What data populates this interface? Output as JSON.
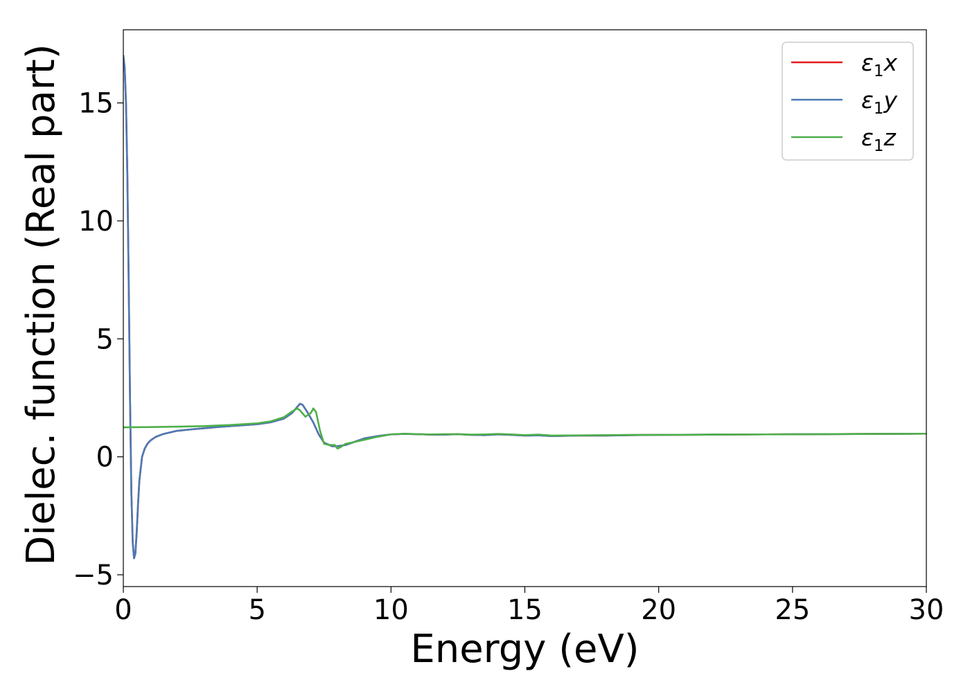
{
  "chart_data": {
    "type": "line",
    "title": "",
    "xlabel": "Energy (eV)",
    "ylabel": "Dielec. function (Real part)",
    "xlim": [
      0,
      30
    ],
    "ylim": [
      -5.5,
      18.1
    ],
    "xticks": [
      0,
      5,
      10,
      15,
      20,
      25,
      30
    ],
    "yticks": [
      -5,
      0,
      5,
      10,
      15
    ],
    "xtick_labels": [
      "0",
      "5",
      "10",
      "15",
      "20",
      "25",
      "30"
    ],
    "ytick_labels": [
      "−5",
      "0",
      "5",
      "10",
      "15"
    ],
    "grid": false,
    "legend_position": "top-right",
    "series": [
      {
        "name": "ε1x",
        "symbol": "ε",
        "subscript": "1",
        "axis": "x",
        "color": "#e41a1c",
        "x": [
          0,
          0.05,
          0.1,
          0.15,
          0.2,
          0.25,
          0.3,
          0.35,
          0.4,
          0.45,
          0.5,
          0.55,
          0.6,
          0.7,
          0.8,
          0.9,
          1.0,
          1.2,
          1.5,
          2.0,
          2.5,
          3.0,
          3.5,
          4.0,
          4.5,
          5.0,
          5.5,
          6.0,
          6.3,
          6.5,
          6.6,
          6.7,
          6.9,
          7.1,
          7.3,
          7.5,
          7.8,
          8.0,
          8.3,
          8.6,
          9.0,
          9.5,
          10.0,
          10.5,
          11.0,
          11.5,
          12.0,
          12.5,
          13.0,
          13.5,
          14.0,
          14.5,
          15.0,
          15.5,
          16.0,
          17.0,
          18.0,
          19.0,
          20.0,
          22.0,
          24.0,
          26.0,
          28.0,
          30.0
        ],
        "values": [
          17.0,
          16.5,
          15.0,
          12.0,
          7.5,
          2.5,
          -1.5,
          -3.6,
          -4.3,
          -4.1,
          -3.2,
          -2.0,
          -1.0,
          0.0,
          0.35,
          0.55,
          0.68,
          0.84,
          0.97,
          1.1,
          1.16,
          1.21,
          1.26,
          1.3,
          1.34,
          1.38,
          1.46,
          1.62,
          1.85,
          2.12,
          2.25,
          2.2,
          1.85,
          1.45,
          0.95,
          0.6,
          0.45,
          0.45,
          0.5,
          0.62,
          0.78,
          0.88,
          0.95,
          0.97,
          0.96,
          0.94,
          0.94,
          0.96,
          0.93,
          0.92,
          0.95,
          0.93,
          0.9,
          0.91,
          0.88,
          0.9,
          0.9,
          0.92,
          0.93,
          0.94,
          0.95,
          0.96,
          0.97,
          0.98
        ]
      },
      {
        "name": "ε1y",
        "symbol": "ε",
        "subscript": "1",
        "axis": "y",
        "color": "#4a7ab5",
        "x": [
          0,
          0.05,
          0.1,
          0.15,
          0.2,
          0.25,
          0.3,
          0.35,
          0.4,
          0.45,
          0.5,
          0.55,
          0.6,
          0.7,
          0.8,
          0.9,
          1.0,
          1.2,
          1.5,
          2.0,
          2.5,
          3.0,
          3.5,
          4.0,
          4.5,
          5.0,
          5.5,
          6.0,
          6.3,
          6.5,
          6.6,
          6.7,
          6.9,
          7.1,
          7.3,
          7.5,
          7.8,
          8.0,
          8.3,
          8.6,
          9.0,
          9.5,
          10.0,
          10.5,
          11.0,
          11.5,
          12.0,
          12.5,
          13.0,
          13.5,
          14.0,
          14.5,
          15.0,
          15.5,
          16.0,
          17.0,
          18.0,
          19.0,
          20.0,
          22.0,
          24.0,
          26.0,
          28.0,
          30.0
        ],
        "values": [
          17.0,
          16.5,
          15.0,
          12.0,
          7.5,
          2.5,
          -1.5,
          -3.6,
          -4.3,
          -4.1,
          -3.2,
          -2.0,
          -1.0,
          0.0,
          0.35,
          0.55,
          0.68,
          0.84,
          0.97,
          1.1,
          1.16,
          1.21,
          1.26,
          1.3,
          1.34,
          1.38,
          1.46,
          1.62,
          1.85,
          2.12,
          2.25,
          2.2,
          1.85,
          1.45,
          0.95,
          0.6,
          0.45,
          0.45,
          0.5,
          0.62,
          0.78,
          0.88,
          0.95,
          0.97,
          0.96,
          0.94,
          0.94,
          0.96,
          0.93,
          0.92,
          0.95,
          0.93,
          0.9,
          0.91,
          0.88,
          0.9,
          0.9,
          0.92,
          0.93,
          0.94,
          0.95,
          0.96,
          0.97,
          0.98
        ]
      },
      {
        "name": "ε1z",
        "symbol": "ε",
        "subscript": "1",
        "axis": "z",
        "color": "#4daf4a",
        "x": [
          0,
          1.0,
          2.0,
          3.0,
          4.0,
          5.0,
          5.5,
          6.0,
          6.3,
          6.5,
          6.6,
          6.8,
          7.0,
          7.1,
          7.2,
          7.35,
          7.5,
          7.7,
          7.9,
          8.0,
          8.1,
          8.3,
          8.6,
          9.0,
          9.5,
          10.0,
          10.5,
          11.0,
          11.5,
          12.0,
          12.5,
          13.0,
          13.5,
          14.0,
          14.5,
          15.0,
          15.5,
          16.0,
          17.0,
          18.0,
          19.0,
          20.0,
          22.0,
          24.0,
          26.0,
          28.0,
          30.0
        ],
        "values": [
          1.25,
          1.26,
          1.28,
          1.3,
          1.35,
          1.42,
          1.5,
          1.68,
          1.92,
          2.05,
          1.97,
          1.7,
          1.85,
          2.05,
          1.9,
          1.1,
          0.55,
          0.5,
          0.5,
          0.35,
          0.4,
          0.55,
          0.62,
          0.72,
          0.85,
          0.95,
          0.98,
          0.96,
          0.95,
          0.96,
          0.96,
          0.94,
          0.95,
          0.97,
          0.95,
          0.92,
          0.94,
          0.9,
          0.91,
          0.92,
          0.93,
          0.93,
          0.94,
          0.95,
          0.96,
          0.97,
          0.98
        ]
      }
    ]
  }
}
